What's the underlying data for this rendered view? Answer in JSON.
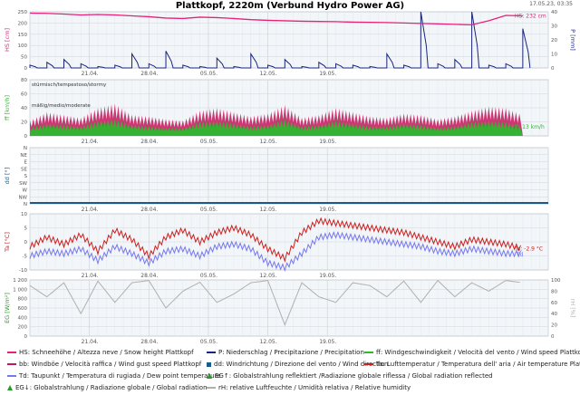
{
  "title": "Plattkopf, 2220m (Verbund Hydro Power AG)",
  "timestamp": "17.05.23, 03:35",
  "colors": {
    "hs": "#e8207a",
    "precip": "#1a237e",
    "ff": "#2db82d",
    "bb": "#c2185b",
    "dd": "#1a5a8a",
    "ta": "#cc1f1f",
    "td": "#7777ee",
    "eg": "#2a9a2a",
    "rh": "#b0b0b0",
    "grid": "#cfd6dc",
    "panel_bg": "#f2f6f9"
  },
  "chart_data": [
    {
      "type": "line",
      "panel": "snow",
      "x_tick_labels": [
        "21.04.",
        "28.04.",
        "05.05.",
        "12.05.",
        "19.05."
      ],
      "y_axis_left": {
        "label": "HS [cm]",
        "ticks": [
          "0",
          "50",
          "100",
          "150",
          "200",
          "250"
        ],
        "range": [
          0,
          250
        ]
      },
      "y_axis_right": {
        "label": "P [mm]",
        "ticks": [
          "0",
          "10",
          "20",
          "30",
          "40"
        ],
        "range": [
          0,
          40
        ]
      },
      "series": [
        {
          "key": "hs",
          "x": [
            14,
            16,
            18,
            20,
            22,
            24,
            26,
            28,
            30,
            32,
            34,
            36,
            38,
            40,
            42,
            44,
            46,
            48,
            50,
            52,
            54,
            56,
            58,
            60,
            62,
            64,
            66,
            68,
            70,
            72
          ],
          "values": [
            244,
            243,
            240,
            236,
            238,
            236,
            232,
            228,
            222,
            220,
            226,
            224,
            220,
            215,
            212,
            210,
            208,
            207,
            206,
            204,
            203,
            202,
            200,
            198,
            196,
            194,
            192,
            210,
            234,
            232
          ]
        },
        {
          "key": "precip",
          "x": [
            14,
            16,
            18,
            20,
            22,
            24,
            26,
            28,
            30,
            32,
            34,
            36,
            38,
            40,
            42,
            44,
            46,
            48,
            50,
            52,
            54,
            56,
            58,
            60,
            62,
            64,
            66,
            68,
            70,
            72
          ],
          "values": [
            2,
            4,
            6,
            3,
            1,
            2,
            10,
            3,
            12,
            2,
            1,
            7,
            1,
            10,
            2,
            6,
            1,
            4,
            3,
            2,
            1,
            10,
            2,
            40,
            3,
            6,
            40,
            2,
            3,
            28
          ]
        }
      ],
      "annotation": "HS: 232 cm"
    },
    {
      "type": "area",
      "panel": "wind",
      "x_tick_labels": [
        "21.04.",
        "28.04.",
        "05.05.",
        "12.05.",
        "19.05."
      ],
      "y_axis_left": {
        "label": "ff [km/h]",
        "ticks": [
          "0",
          "20",
          "40",
          "60",
          "80"
        ],
        "range": [
          0,
          80
        ]
      },
      "zone_labels": [
        "stürmisch/tempestoso/stormy",
        "mäßig/medio/moderate"
      ],
      "series": [
        {
          "key": "bb",
          "x": [
            14,
            16,
            18,
            20,
            22,
            24,
            26,
            28,
            30,
            32,
            34,
            36,
            38,
            40,
            42,
            44,
            46,
            48,
            50,
            52,
            54,
            56,
            58,
            60,
            62,
            64,
            66,
            68,
            70,
            72
          ],
          "values": [
            22,
            34,
            30,
            26,
            40,
            46,
            30,
            28,
            24,
            22,
            36,
            40,
            34,
            28,
            32,
            44,
            26,
            30,
            40,
            34,
            28,
            26,
            32,
            30,
            24,
            28,
            36,
            42,
            40,
            30
          ]
        },
        {
          "key": "ff",
          "x": [
            14,
            16,
            18,
            20,
            22,
            24,
            26,
            28,
            30,
            32,
            34,
            36,
            38,
            40,
            42,
            44,
            46,
            48,
            50,
            52,
            54,
            56,
            58,
            60,
            62,
            64,
            66,
            68,
            70,
            72
          ],
          "values": [
            12,
            18,
            16,
            14,
            22,
            24,
            16,
            14,
            12,
            12,
            20,
            22,
            18,
            14,
            16,
            24,
            14,
            16,
            22,
            18,
            14,
            14,
            18,
            16,
            12,
            14,
            20,
            22,
            20,
            13
          ]
        }
      ],
      "annotation": "ff: 13 km/h"
    },
    {
      "type": "scatter",
      "panel": "direction",
      "x_tick_labels": [
        "21.04.",
        "28.04.",
        "05.05.",
        "12.05.",
        "19.05."
      ],
      "y_axis_left": {
        "label": "dd [°]",
        "ticks": [
          "N",
          "NW",
          "W",
          "SW",
          "S",
          "SE",
          "E",
          "NE",
          "N"
        ]
      },
      "series": [
        {
          "key": "dd",
          "constant": "N"
        }
      ]
    },
    {
      "type": "line",
      "panel": "temperature",
      "x_tick_labels": [
        "21.04.",
        "28.04.",
        "05.05.",
        "12.05.",
        "19.05."
      ],
      "y_axis_left": {
        "label": "Ta [°C]",
        "ticks": [
          "-10",
          "-5",
          "0",
          "5",
          "10"
        ],
        "range": [
          -12,
          12
        ]
      },
      "series": [
        {
          "key": "ta",
          "x": [
            14,
            16,
            18,
            20,
            22,
            24,
            26,
            28,
            30,
            32,
            34,
            36,
            38,
            40,
            42,
            44,
            46,
            48,
            50,
            52,
            54,
            56,
            58,
            60,
            62,
            64,
            66,
            68,
            70,
            72
          ],
          "values": [
            -2,
            2,
            -1,
            3,
            -4,
            5,
            1,
            -6,
            2,
            5,
            0,
            4,
            6,
            3,
            -3,
            -7,
            4,
            9,
            8,
            7,
            6,
            5,
            4,
            2,
            0,
            -2,
            1,
            0,
            -1,
            -2.9
          ]
        },
        {
          "key": "td",
          "x": [
            14,
            16,
            18,
            20,
            22,
            24,
            26,
            28,
            30,
            32,
            34,
            36,
            38,
            40,
            42,
            44,
            46,
            48,
            50,
            52,
            54,
            56,
            58,
            60,
            62,
            64,
            66,
            68,
            70,
            72
          ],
          "values": [
            -6,
            -4,
            -5,
            -3,
            -8,
            -2,
            -5,
            -9,
            -4,
            -3,
            -6,
            -2,
            -1,
            -3,
            -9,
            -11,
            -5,
            2,
            3,
            2,
            1,
            0,
            -1,
            -2,
            -4,
            -5,
            -3,
            -4,
            -5,
            -5
          ]
        }
      ],
      "annotation_ta": "Ta: -2.9 °C",
      "annotation_td": "Td"
    },
    {
      "type": "line",
      "panel": "radiation",
      "x_tick_labels": [
        "21.04.",
        "28.04.",
        "05.05.",
        "12.05.",
        "19.05."
      ],
      "y_axis_left": {
        "label": "EG [W/m²]",
        "ticks": [
          "0",
          "200",
          "400",
          "600",
          "800",
          "1 000",
          "1 200"
        ],
        "range": [
          0,
          1200
        ]
      },
      "y_axis_right": {
        "label": "rH [%]",
        "ticks": [
          "0",
          "20",
          "40",
          "60",
          "80",
          "100"
        ],
        "range": [
          0,
          100
        ]
      },
      "series": [
        {
          "key": "rh",
          "x": [
            14,
            16,
            18,
            20,
            22,
            24,
            26,
            28,
            30,
            32,
            34,
            36,
            38,
            40,
            42,
            44,
            46,
            48,
            50,
            52,
            54,
            56,
            58,
            60,
            62,
            64,
            66,
            68,
            70,
            72
          ],
          "values": [
            90,
            70,
            95,
            40,
            98,
            60,
            95,
            99,
            50,
            80,
            96,
            60,
            75,
            95,
            99,
            20,
            95,
            70,
            60,
            95,
            90,
            70,
            98,
            60,
            99,
            70,
            95,
            80,
            99,
            95
          ]
        }
      ]
    }
  ],
  "legend": {
    "row1": [
      {
        "key": "hs",
        "label": "HS: Schneehöhe / Altezza neve / Snow height  Plattkopf"
      },
      {
        "key": "precip",
        "label": "P: Niederschlag / Precipitazione / Precipitation"
      },
      {
        "key": "ff",
        "label": "ff: Windgeschwindigkeit / Velocità del vento / Wind speed  Plattkopf"
      }
    ],
    "row2": [
      {
        "key": "bb",
        "label": "bb: Windböe / Velocità raffica / Wind gust speed  Plattkopf"
      },
      {
        "key": "dd",
        "label": "dd: Windrichtung / Direzione del vento / Wind direction"
      },
      {
        "key": "ta",
        "label": "Ta: Lufttemperatur / Temperatura dell' aria / Air temperature  Plattkopf"
      }
    ],
    "row3": [
      {
        "key": "td",
        "label": "Td: Taupunkt / Temperatura di rugiada / Dew point temperature"
      },
      {
        "key": "egr",
        "label": "EG↑: Globalstrahlung reflektiert /Radiazione globale riflessa / Global radiation reflected"
      }
    ],
    "row4": [
      {
        "key": "eg",
        "label": "EG↓: Globalstrahlung / Radiazione globale / Global radiation"
      },
      {
        "key": "rh",
        "label": "rH: relative Luftfeuchte / Umidità relativa / Relative humidity"
      }
    ]
  }
}
